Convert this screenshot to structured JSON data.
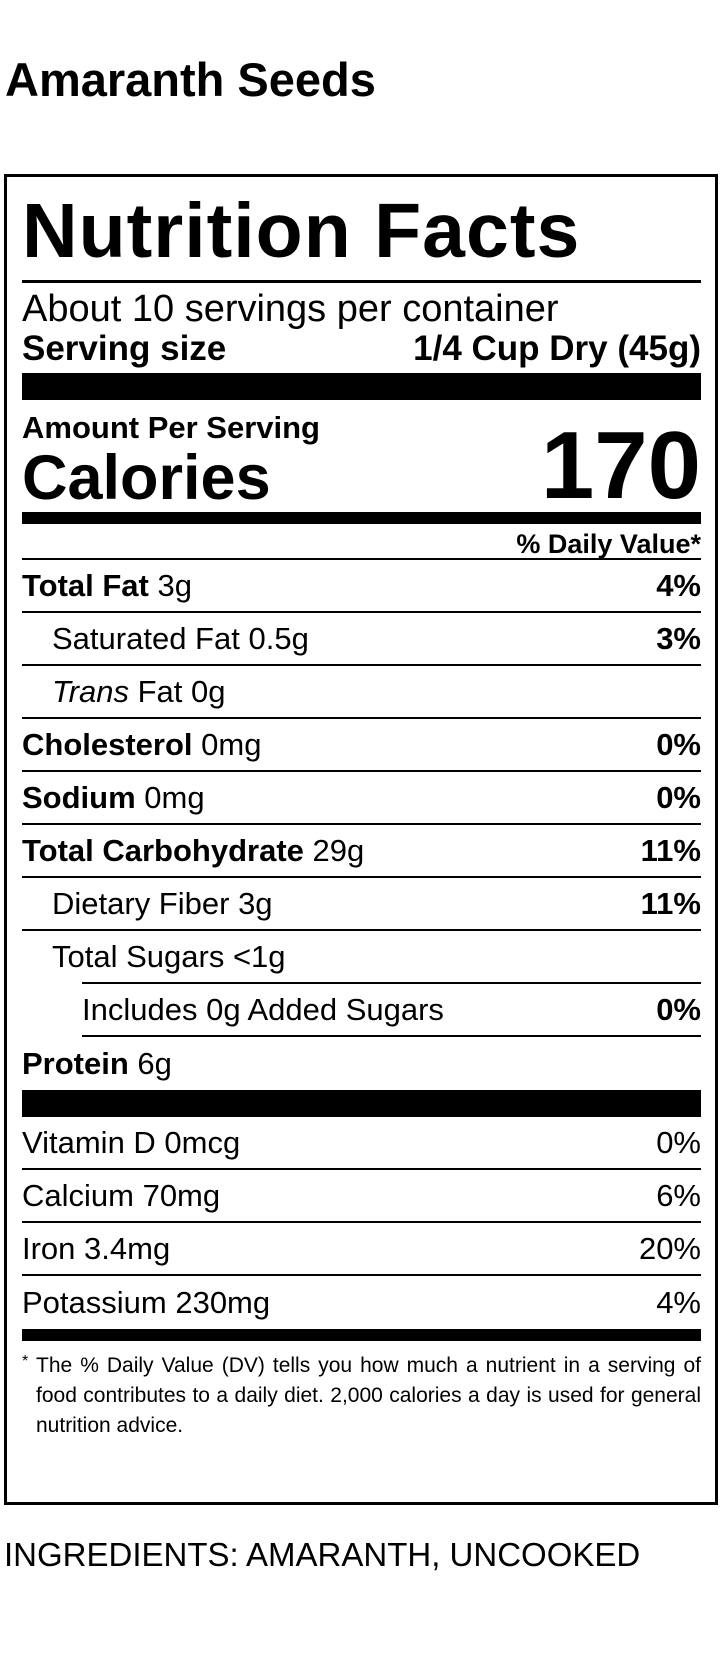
{
  "title": "Amaranth Seeds",
  "label": {
    "heading": "Nutrition Facts",
    "servings": "About 10 servings per container",
    "serving_size_label": "Serving size",
    "serving_size_value": "1/4 Cup Dry (45g)",
    "amount_per_serving": "Amount Per Serving",
    "calories_label": "Calories",
    "calories_value": "170",
    "dv_header": "% Daily Value*",
    "nutrients": [
      {
        "name": "Total Fat",
        "amount": "3g",
        "dv": "4%"
      },
      {
        "name": "Saturated Fat",
        "amount": "0.5g",
        "dv": "3%"
      },
      {
        "name_italic": "Trans",
        "name": "Fat",
        "amount": "0g",
        "dv": ""
      },
      {
        "name": "Cholesterol",
        "amount": "0mg",
        "dv": "0%"
      },
      {
        "name": "Sodium",
        "amount": "0mg",
        "dv": "0%"
      },
      {
        "name": "Total Carbohydrate",
        "amount": "29g",
        "dv": "11%"
      },
      {
        "name": "Dietary Fiber",
        "amount": "3g",
        "dv": "11%"
      },
      {
        "name": "Total Sugars",
        "amount": "<1g",
        "dv": ""
      },
      {
        "text": "Includes 0g Added Sugars",
        "dv": "0%"
      },
      {
        "name": "Protein",
        "amount": "6g",
        "dv": ""
      }
    ],
    "vitamins": [
      {
        "text": "Vitamin D 0mcg",
        "dv": "0%"
      },
      {
        "text": "Calcium 70mg",
        "dv": "6%"
      },
      {
        "text": "Iron 3.4mg",
        "dv": "20%"
      },
      {
        "text": "Potassium 230mg",
        "dv": "4%"
      }
    ],
    "footnote_star": "*",
    "footnote": "The % Daily Value (DV) tells you how much a nutrient in a serving of food contributes to a daily diet. 2,000 calories a day is used for general nutrition advice."
  },
  "ingredients": "INGREDIENTS: AMARANTH, UNCOOKED"
}
